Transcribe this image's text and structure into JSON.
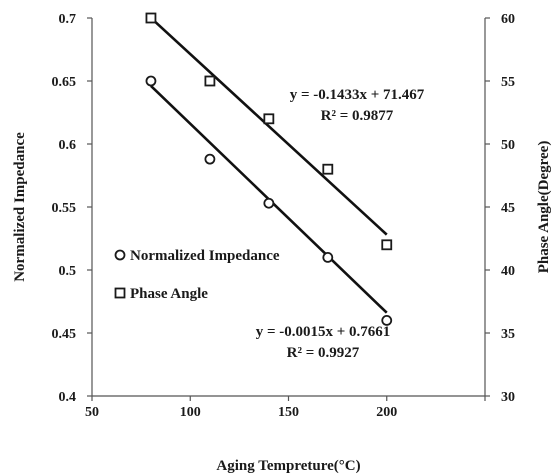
{
  "chart_data": {
    "type": "scatter",
    "xlabel": "Aging Tempreture(°C)",
    "ylabel_left": "Normalized Impedance",
    "ylabel_right": "Phase Angle(Degree)",
    "xlim": [
      50,
      250
    ],
    "xticks": [
      50,
      100,
      150,
      200
    ],
    "ylim_left": [
      0.4,
      0.7
    ],
    "yticks_left": [
      0.4,
      0.45,
      0.5,
      0.55,
      0.6,
      0.65,
      0.7
    ],
    "ylim_right": [
      30,
      60
    ],
    "yticks_right": [
      30,
      35,
      40,
      45,
      50,
      55,
      60
    ],
    "grid": false,
    "legend_position": "left-middle",
    "series": [
      {
        "name": "Normalized Impedance",
        "axis": "left",
        "marker": "circle",
        "x": [
          80,
          110,
          140,
          170,
          200
        ],
        "y": [
          0.65,
          0.588,
          0.553,
          0.51,
          0.46
        ],
        "trendline": {
          "slope": -0.0015,
          "intercept": 0.7661,
          "x_range": [
            80,
            200
          ]
        },
        "equation": "y = -0.0015x + 0.7661",
        "r_squared": "R² = 0.9927"
      },
      {
        "name": "Phase Angle",
        "axis": "right",
        "marker": "square",
        "x": [
          80,
          110,
          140,
          170,
          200
        ],
        "y": [
          60,
          55,
          52,
          48,
          42
        ],
        "trendline": {
          "slope": -0.1433,
          "intercept": 71.467,
          "x_range": [
            80,
            200
          ]
        },
        "equation": "y = -0.1433x + 71.467",
        "r_squared": "R² = 0.9877"
      }
    ]
  }
}
